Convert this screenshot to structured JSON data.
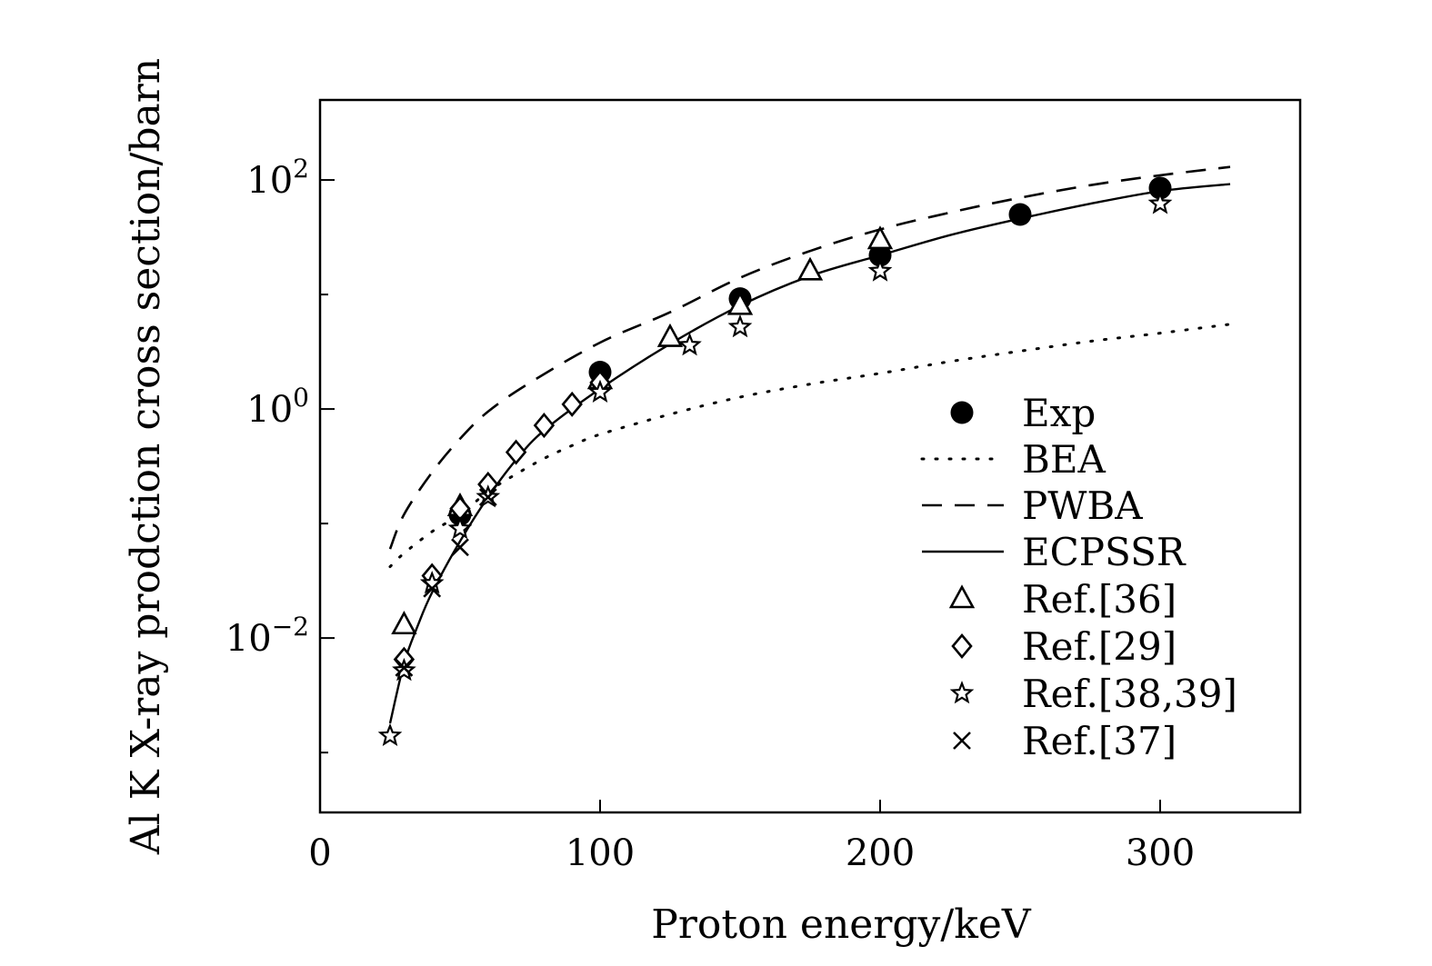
{
  "chart_data": {
    "type": "scatter",
    "xlabel": "Proton energy/keV",
    "ylabel": "Al K X-ray prodction cross section/barn",
    "xlim": [
      0,
      350
    ],
    "ylim": [
      0.0003,
      500
    ],
    "y_scale": "log",
    "grid": false,
    "legend_position": "center-right",
    "x_ticks": [
      0,
      100,
      200,
      300
    ],
    "x_tick_labels": [
      "0",
      "100",
      "200",
      "300"
    ],
    "y_major_ticks": [
      0.01,
      1,
      100
    ],
    "y_tick_labels": [
      {
        "base": "10",
        "exp": "−2"
      },
      {
        "base": "10",
        "exp": "0"
      },
      {
        "base": "10",
        "exp": "2"
      }
    ],
    "y_minor_ticks": [
      0.001,
      0.1,
      10
    ],
    "series": [
      {
        "name": "Exp",
        "style": "filled-circle",
        "x": [
          50,
          100,
          150,
          200,
          250,
          300
        ],
        "y": [
          0.12,
          2.1,
          9.2,
          22,
          50,
          85
        ]
      },
      {
        "name": "BEA",
        "style": "dotted-line",
        "x": [
          25,
          30,
          40,
          50,
          60,
          70,
          80,
          90,
          100,
          125,
          150,
          175,
          200,
          225,
          250,
          275,
          300,
          325
        ],
        "y": [
          0.042,
          0.055,
          0.085,
          0.12,
          0.19,
          0.27,
          0.37,
          0.48,
          0.6,
          0.9,
          1.27,
          1.65,
          2.05,
          2.6,
          3.2,
          3.9,
          4.6,
          5.5
        ]
      },
      {
        "name": "PWBA",
        "style": "dashed-line",
        "x": [
          25,
          30,
          40,
          50,
          60,
          75,
          100,
          125,
          150,
          175,
          200,
          225,
          250,
          275,
          300,
          325
        ],
        "y": [
          0.06,
          0.12,
          0.28,
          0.55,
          0.95,
          1.7,
          3.8,
          7,
          14,
          24,
          37,
          52,
          70,
          90,
          110,
          130
        ]
      },
      {
        "name": "ECPSSR",
        "style": "solid-line",
        "x": [
          25,
          30,
          35,
          40,
          50,
          60,
          70,
          80,
          100,
          125,
          150,
          175,
          200,
          225,
          250,
          275,
          300,
          325
        ],
        "y": [
          0.0018,
          0.006,
          0.013,
          0.025,
          0.07,
          0.17,
          0.36,
          0.65,
          1.5,
          3.7,
          8,
          14.5,
          22,
          33,
          46,
          62,
          80,
          92
        ]
      },
      {
        "name": "Ref.[36]",
        "style": "open-triangle",
        "x": [
          30,
          50,
          100,
          125,
          150,
          175,
          200
        ],
        "y": [
          0.013,
          0.14,
          1.8,
          4.2,
          8,
          16,
          30
        ]
      },
      {
        "name": "Ref.[29]",
        "style": "open-diamond",
        "x": [
          30,
          40,
          50,
          60,
          70,
          80,
          90,
          100
        ],
        "y": [
          0.0065,
          0.035,
          0.135,
          0.22,
          0.42,
          0.72,
          1.1,
          1.7
        ]
      },
      {
        "name": "Ref.[38,39]",
        "style": "open-star",
        "x": [
          25,
          30,
          40,
          50,
          60,
          100,
          132,
          150,
          200,
          300
        ],
        "y": [
          0.0014,
          0.0052,
          0.03,
          0.09,
          0.17,
          1.4,
          3.6,
          5.2,
          16,
          62
        ]
      },
      {
        "name": "Ref.[37]",
        "style": "cross",
        "x": [
          30,
          40,
          50,
          60
        ],
        "y": [
          0.0055,
          0.027,
          0.062,
          0.17
        ]
      }
    ]
  }
}
